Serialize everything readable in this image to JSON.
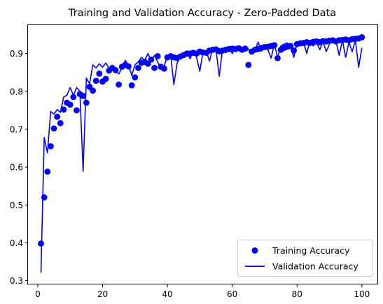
{
  "chart_data": {
    "type": "line",
    "title": "Training and Validation Accuracy - Zero-Padded Data",
    "xlabel": "",
    "ylabel": "",
    "xlim": [
      -3,
      105
    ],
    "ylim": [
      0.29,
      0.975
    ],
    "xticks": [
      0,
      20,
      40,
      60,
      80,
      100
    ],
    "yticks": [
      0.3,
      0.4,
      0.5,
      0.6,
      0.7,
      0.8,
      0.9
    ],
    "grid": false,
    "legend_position": "lower-right",
    "x": [
      1,
      2,
      3,
      4,
      5,
      6,
      7,
      8,
      9,
      10,
      11,
      12,
      13,
      14,
      15,
      16,
      17,
      18,
      19,
      20,
      21,
      22,
      23,
      24,
      25,
      26,
      27,
      28,
      29,
      30,
      31,
      32,
      33,
      34,
      35,
      36,
      37,
      38,
      39,
      40,
      41,
      42,
      43,
      44,
      45,
      46,
      47,
      48,
      49,
      50,
      51,
      52,
      53,
      54,
      55,
      56,
      57,
      58,
      59,
      60,
      61,
      62,
      63,
      64,
      65,
      66,
      67,
      68,
      69,
      70,
      71,
      72,
      73,
      74,
      75,
      76,
      77,
      78,
      79,
      80,
      81,
      82,
      83,
      84,
      85,
      86,
      87,
      88,
      89,
      90,
      91,
      92,
      93,
      94,
      95,
      96,
      97,
      98,
      99,
      100
    ],
    "series": [
      {
        "name": "Training Accuracy",
        "style": "markers",
        "color": "#0000ff",
        "values": [
          0.398,
          0.52,
          0.588,
          0.655,
          0.702,
          0.733,
          0.716,
          0.752,
          0.77,
          0.765,
          0.785,
          0.75,
          0.793,
          0.788,
          0.77,
          0.812,
          0.802,
          0.828,
          0.847,
          0.826,
          0.833,
          0.855,
          0.862,
          0.856,
          0.818,
          0.865,
          0.87,
          0.866,
          0.816,
          0.837,
          0.862,
          0.876,
          0.878,
          0.873,
          0.884,
          0.862,
          0.893,
          0.865,
          0.86,
          0.89,
          0.893,
          0.89,
          0.888,
          0.892,
          0.896,
          0.9,
          0.9,
          0.902,
          0.9,
          0.905,
          0.903,
          0.902,
          0.908,
          0.91,
          0.911,
          0.906,
          0.908,
          0.91,
          0.912,
          0.913,
          0.912,
          0.914,
          0.91,
          0.913,
          0.87,
          0.905,
          0.91,
          0.912,
          0.915,
          0.917,
          0.918,
          0.92,
          0.922,
          0.888,
          0.91,
          0.915,
          0.918,
          0.92,
          0.908,
          0.925,
          0.927,
          0.928,
          0.93,
          0.928,
          0.931,
          0.932,
          0.93,
          0.933,
          0.932,
          0.934,
          0.935,
          0.932,
          0.935,
          0.936,
          0.937,
          0.935,
          0.938,
          0.939,
          0.94,
          0.943
        ]
      },
      {
        "name": "Validation Accuracy",
        "style": "line",
        "color": "#0000ff",
        "values": [
          0.321,
          0.678,
          0.638,
          0.747,
          0.74,
          0.752,
          0.745,
          0.785,
          0.79,
          0.81,
          0.79,
          0.81,
          0.8,
          0.589,
          0.835,
          0.82,
          0.87,
          0.862,
          0.873,
          0.864,
          0.875,
          0.86,
          0.867,
          0.855,
          0.846,
          0.862,
          0.882,
          0.87,
          0.842,
          0.87,
          0.878,
          0.89,
          0.882,
          0.9,
          0.88,
          0.895,
          0.878,
          0.86,
          0.866,
          0.894,
          0.897,
          0.818,
          0.875,
          0.89,
          0.9,
          0.905,
          0.886,
          0.906,
          0.89,
          0.853,
          0.905,
          0.905,
          0.88,
          0.915,
          0.91,
          0.84,
          0.912,
          0.902,
          0.915,
          0.9,
          0.918,
          0.914,
          0.905,
          0.92,
          0.912,
          0.903,
          0.91,
          0.93,
          0.906,
          0.923,
          0.91,
          0.888,
          0.925,
          0.89,
          0.92,
          0.925,
          0.928,
          0.92,
          0.89,
          0.93,
          0.922,
          0.93,
          0.9,
          0.935,
          0.92,
          0.93,
          0.91,
          0.932,
          0.905,
          0.925,
          0.935,
          0.933,
          0.895,
          0.935,
          0.89,
          0.93,
          0.905,
          0.935,
          0.864,
          0.915
        ]
      }
    ]
  }
}
